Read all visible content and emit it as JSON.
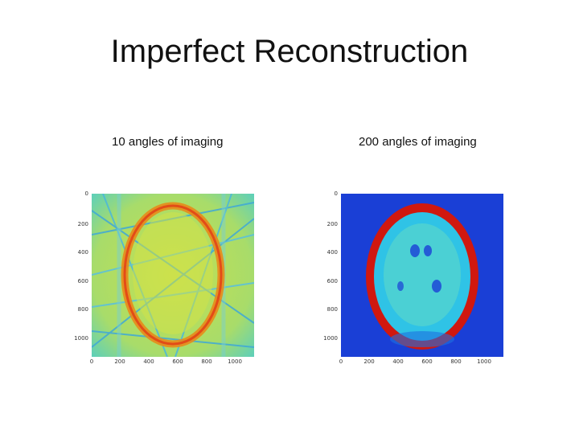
{
  "slide": {
    "title": "Imperfect Reconstruction"
  },
  "panels": [
    {
      "caption": "10 angles of imaging",
      "y_ticks": [
        "0",
        "200",
        "400",
        "600",
        "800",
        "1000"
      ],
      "x_ticks": [
        "0",
        "200",
        "400",
        "600",
        "800",
        "1000"
      ]
    },
    {
      "caption": "200 angles of imaging",
      "y_ticks": [
        "0",
        "200",
        "400",
        "600",
        "800",
        "1000"
      ],
      "x_ticks": [
        "0",
        "200",
        "400",
        "600",
        "800",
        "1000"
      ]
    }
  ],
  "colors": {
    "background_blue": "#1a3fd6",
    "field_cyan": "#2fc3e6",
    "field_yellow": "#c9e24a",
    "skull_red": "#d0180f"
  }
}
